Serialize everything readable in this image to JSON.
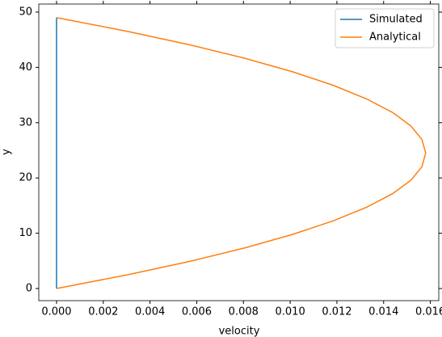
{
  "chart_data": {
    "type": "line",
    "x_label": "velocity",
    "y_label": "y",
    "y": [
      0,
      2.45,
      4.9,
      7.35,
      9.8,
      12.25,
      14.7,
      17.15,
      19.6,
      22.05,
      24.5,
      26.95,
      29.4,
      31.85,
      34.3,
      36.75,
      39.2,
      41.65,
      44.1,
      46.55,
      49
    ],
    "series": [
      {
        "name": "Simulated",
        "color": "#1f77b4",
        "values": [
          0,
          0,
          0,
          0,
          0,
          0,
          0,
          0,
          0,
          0,
          0,
          0,
          0,
          0,
          0,
          0,
          0,
          0,
          0,
          0,
          0
        ]
      },
      {
        "name": "Analytical",
        "color": "#ff7f0e",
        "values": [
          0,
          0.003,
          0.00569,
          0.00806,
          0.01011,
          0.01185,
          0.01327,
          0.01438,
          0.01517,
          0.01564,
          0.0158,
          0.01564,
          0.01517,
          0.01438,
          0.01327,
          0.01185,
          0.01011,
          0.00806,
          0.00569,
          0.003,
          0
        ]
      }
    ],
    "xlim": [
      -0.00076,
      0.01636
    ],
    "ylim": [
      -2.19,
      51.46
    ],
    "xticks": [
      {
        "value": 0,
        "label": "0.000"
      },
      {
        "value": 0.002,
        "label": "0.002"
      },
      {
        "value": 0.004,
        "label": "0.004"
      },
      {
        "value": 0.006,
        "label": "0.006"
      },
      {
        "value": 0.008,
        "label": "0.008"
      },
      {
        "value": 0.01,
        "label": "0.010"
      },
      {
        "value": 0.012,
        "label": "0.012"
      },
      {
        "value": 0.014,
        "label": "0.014"
      },
      {
        "value": 0.016,
        "label": "0.016"
      }
    ],
    "yticks": [
      0,
      10,
      20,
      30,
      40,
      50
    ],
    "legend": "upper right"
  }
}
